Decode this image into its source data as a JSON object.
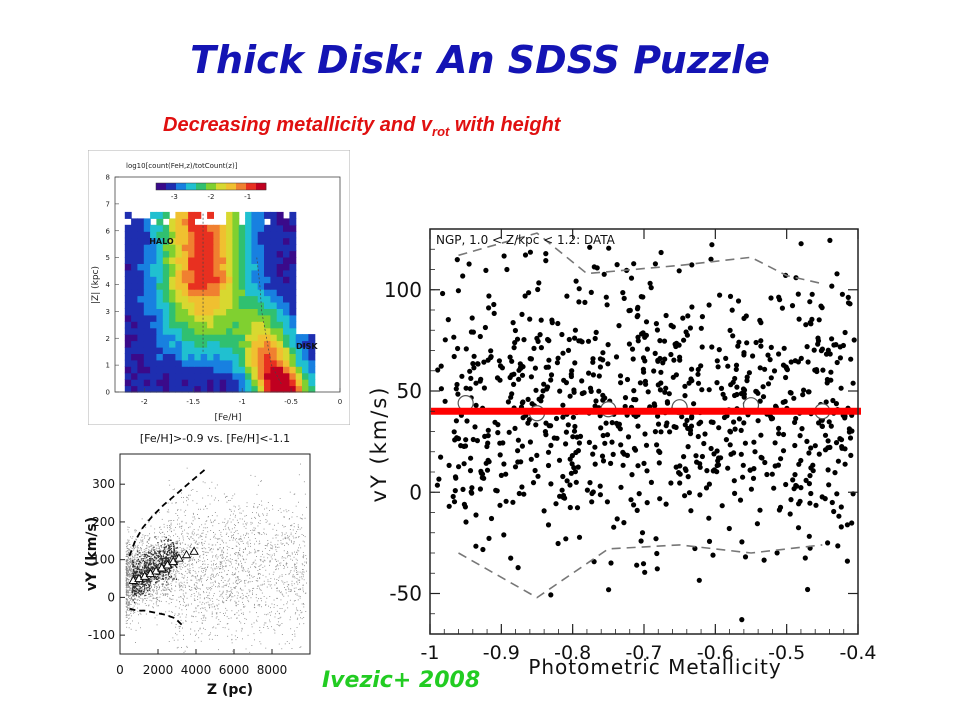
{
  "slide": {
    "title": "Thick Disk: An SDSS Puzzle",
    "subtitle_main": "Decreasing metallicity and v",
    "subtitle_sub": "rot",
    "subtitle_end": " with height",
    "credit": "Ivezic+ 2008"
  },
  "chart_data": [
    {
      "type": "heatmap",
      "title": "log10[count(FeH,z)/totCount(z)]",
      "xlabel": "[Fe/H]",
      "ylabel": "|Z| (kpc)",
      "xlim": [
        -2.3,
        0
      ],
      "ylim": [
        0,
        8
      ],
      "x_ticks": [
        "-2",
        "-1.5",
        "-1",
        "-0.5",
        "0"
      ],
      "y_ticks": [
        "0",
        "1",
        "2",
        "3",
        "4",
        "5",
        "6",
        "7",
        "8"
      ],
      "colorbar_ticks": [
        "-3",
        "-2",
        "-1"
      ],
      "colorbar_range": [
        -3.5,
        -0.5
      ],
      "annotations": [
        "HALO",
        "DISK"
      ],
      "halo_peak_feh": -1.4,
      "disk_feh_at_z": [
        [
          0.3,
          -0.6
        ],
        [
          1.0,
          -0.7
        ],
        [
          2.0,
          -0.75
        ],
        [
          3.0,
          -0.8
        ],
        [
          4.0,
          -0.82
        ],
        [
          5.0,
          -0.85
        ]
      ],
      "colors": [
        "#3a0a8a",
        "#1e2eb0",
        "#1880e0",
        "#20c0d0",
        "#30c070",
        "#80d030",
        "#d8d830",
        "#f0c030",
        "#f08030",
        "#e83020",
        "#c00020"
      ]
    },
    {
      "type": "scatter",
      "title": "[Fe/H]>-0.9 vs. [Fe/H]<-1.1",
      "xlabel": "Z (pc)",
      "ylabel": "vY (km/s)",
      "xlim": [
        0,
        10000
      ],
      "ylim": [
        -150,
        380
      ],
      "x_ticks": [
        "0",
        "2000",
        "4000",
        "6000",
        "8000"
      ],
      "y_ticks": [
        "-100",
        "0",
        "100",
        "200",
        "300"
      ],
      "thin_disk_trend": {
        "x": [
          700,
          1000,
          1300,
          1600,
          1900,
          2200,
          2500,
          2800,
          3100,
          3500,
          3900
        ],
        "y": [
          45,
          50,
          56,
          63,
          70,
          78,
          86,
          95,
          104,
          113,
          122
        ]
      },
      "upper_envelope": {
        "x": [
          500,
          800,
          1200,
          1700,
          2300,
          3000,
          3800,
          4500
        ],
        "y": [
          110,
          150,
          185,
          215,
          245,
          275,
          310,
          340
        ]
      },
      "lower_envelope": {
        "x": [
          500,
          900,
          1300,
          1800,
          2300,
          2900,
          3300
        ],
        "y": [
          -30,
          -35,
          -35,
          -40,
          -45,
          -55,
          -75
        ]
      }
    },
    {
      "type": "scatter",
      "title": "NGP, 1.0 < Z/kpc < 1.2: DATA",
      "xlabel": "Photometric Metallicity",
      "ylabel": "vY (km/s)",
      "xlim": [
        -1.0,
        -0.4
      ],
      "ylim": [
        -70,
        130
      ],
      "x_ticks": [
        "-1",
        "-0.9",
        "-0.8",
        "-0.7",
        "-0.6",
        "-0.5",
        "-0.4"
      ],
      "y_ticks": [
        "-50",
        "0",
        "50",
        "100"
      ],
      "n_points": 900,
      "point_mean": 42,
      "point_sd": 35,
      "mean_points": {
        "x": [
          -0.95,
          -0.85,
          -0.75,
          -0.65,
          -0.55,
          -0.45
        ],
        "y": [
          44,
          39,
          41,
          42,
          43,
          40
        ]
      },
      "upper_dashed": {
        "x": [
          -0.96,
          -0.85,
          -0.78,
          -0.65,
          -0.55,
          -0.5,
          -0.45
        ],
        "y": [
          117,
          128,
          108,
          112,
          116,
          107,
          103
        ]
      },
      "lower_dashed": {
        "x": [
          -0.96,
          -0.85,
          -0.75,
          -0.65,
          -0.55,
          -0.45
        ],
        "y": [
          -30,
          -52,
          -28,
          -26,
          -30,
          -26
        ]
      },
      "reference_line_y": 40,
      "reference_line_color": "#ff0000"
    }
  ]
}
